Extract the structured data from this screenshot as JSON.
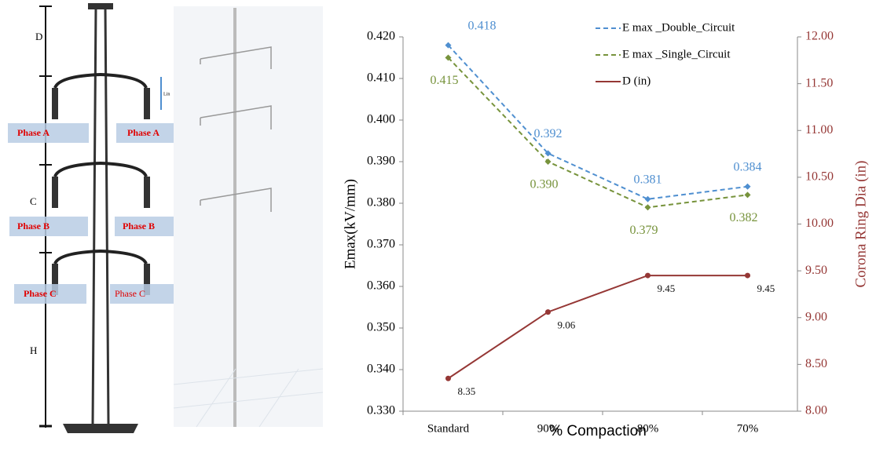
{
  "chart_data": {
    "type": "line",
    "categories": [
      "Standard",
      "90%",
      "80%",
      "70%"
    ],
    "x_label": "% Compaction",
    "y_label": "Emax(kV/mm)",
    "y2_label": "Corona Ring Dia (in)",
    "ylim": [
      0.33,
      0.42
    ],
    "yticks": [
      {
        "value": 0.33,
        "label": "0.330"
      },
      {
        "value": 0.34,
        "label": "0.340"
      },
      {
        "value": 0.35,
        "label": "0.350"
      },
      {
        "value": 0.36,
        "label": "0.360"
      },
      {
        "value": 0.37,
        "label": "0.370"
      },
      {
        "value": 0.38,
        "label": "0.380"
      },
      {
        "value": 0.39,
        "label": "0.390"
      },
      {
        "value": 0.4,
        "label": "0.400"
      },
      {
        "value": 0.41,
        "label": "0.410"
      },
      {
        "value": 0.42,
        "label": "0.420"
      }
    ],
    "y2lim": [
      8,
      12
    ],
    "y2ticks": [
      {
        "value": 8,
        "label": "8.00"
      },
      {
        "value": 8.5,
        "label": "8.50"
      },
      {
        "value": 9,
        "label": "9.00"
      },
      {
        "value": 9.5,
        "label": "9.50"
      },
      {
        "value": 10,
        "label": "10.00"
      },
      {
        "value": 10.5,
        "label": "10.50"
      },
      {
        "value": 11,
        "label": "11.00"
      },
      {
        "value": 11.5,
        "label": "11.50"
      },
      {
        "value": 12,
        "label": "12.00"
      }
    ],
    "legend": "top-right",
    "series": [
      {
        "name": "E max _Double_Circuit",
        "color": "#4f8fd0",
        "dashed": true,
        "values": [
          0.418,
          0.392,
          0.381,
          0.384
        ],
        "value_labels": [
          "0.418",
          "0.392",
          "0.381",
          "0.384"
        ]
      },
      {
        "name": "E max _Single_Circuit",
        "color": "#77933c",
        "dashed": true,
        "values": [
          0.415,
          0.39,
          0.379,
          0.382
        ],
        "value_labels": [
          "0.415",
          "0.390",
          "0.379",
          "0.382"
        ]
      },
      {
        "name": "D (in)",
        "color": "#953735",
        "dashed": false,
        "axis": "y2",
        "values": [
          8.35,
          9.06,
          9.45,
          9.45
        ]
      }
    ]
  },
  "diagram": {
    "labels": [
      "D",
      "Lin",
      "Phase A",
      "Phase A",
      "C",
      "Phase B",
      "Phase B",
      "Phase C",
      "Phase C",
      "H"
    ]
  }
}
